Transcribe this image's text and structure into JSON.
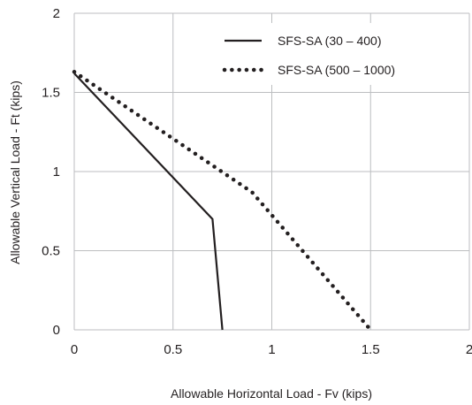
{
  "chart_data": {
    "type": "line",
    "xlabel": "Allowable Horizontal Load - Fv (kips)",
    "ylabel": "Allowable Vertical Load - Ft (kips)",
    "xlim": [
      0,
      2
    ],
    "ylim": [
      0,
      2
    ],
    "xticks": [
      "0",
      "0.5",
      "1",
      "1.5",
      "2"
    ],
    "yticks": [
      "0",
      "0.5",
      "1",
      "1.5",
      "2"
    ],
    "grid": true,
    "legend_position": "top-right",
    "series": [
      {
        "name": "SFS-SA (30 – 400)",
        "style": "solid",
        "color": "#231f20",
        "points": [
          [
            0,
            1.62
          ],
          [
            0.7,
            0.7
          ],
          [
            0.75,
            0
          ]
        ]
      },
      {
        "name": "SFS-SA (500 – 1000)",
        "style": "dotted",
        "color": "#231f20",
        "points": [
          [
            0,
            1.63
          ],
          [
            0.9,
            0.87
          ],
          [
            1.5,
            0
          ]
        ]
      }
    ]
  }
}
